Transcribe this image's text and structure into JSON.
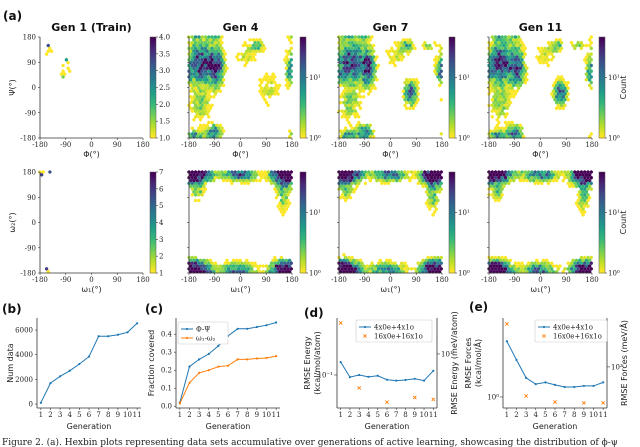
{
  "figure_label_a": "(a)",
  "caption": "Figure 2. (a). Hexbin plots representing data sets accumulative over generations of active learning, showcasing the distribution of ϕ-ψ",
  "chart_data": [
    {
      "type": "heatmap",
      "panel": "a",
      "title": "Gen 1 (Train)",
      "xlabel": "Φ(°)",
      "ylabel": "Ψ(°)",
      "xticks": [
        "-180",
        "-90",
        "0",
        "90",
        "180"
      ],
      "yticks": [
        "180",
        "90",
        "0",
        "-90",
        "-180"
      ],
      "colorbar": {
        "scale": "linear",
        "range": [
          1,
          4
        ],
        "ticks": [
          "1.0",
          "1.5",
          "2.0",
          "2.5",
          "3.0",
          "3.5",
          "4.0"
        ],
        "label": ""
      }
    },
    {
      "type": "heatmap",
      "panel": "a",
      "title": "Gen 4",
      "xlabel": "Φ(°)",
      "xticks": [
        "-180",
        "-90",
        "0",
        "90",
        "180"
      ],
      "colorbar": {
        "scale": "log",
        "ticks": [
          "10⁰",
          "10¹"
        ],
        "label": ""
      }
    },
    {
      "type": "heatmap",
      "panel": "a",
      "title": "Gen 7",
      "xlabel": "Φ(°)",
      "xticks": [
        "-180",
        "-90",
        "0",
        "90",
        "180"
      ],
      "colorbar": {
        "scale": "log",
        "ticks": [
          "10⁰",
          "10¹"
        ],
        "label": ""
      }
    },
    {
      "type": "heatmap",
      "panel": "a",
      "title": "Gen 11",
      "xlabel": "Φ(°)",
      "xticks": [
        "-180",
        "-90",
        "0",
        "90",
        "180"
      ],
      "colorbar": {
        "scale": "log",
        "ticks": [
          "10⁰",
          "10¹"
        ],
        "label": "Count"
      }
    },
    {
      "type": "heatmap",
      "panel": "a",
      "title": "",
      "xlabel": "ω₁(°)",
      "ylabel": "ω₂(°)",
      "xticks": [
        "-180",
        "-90",
        "0",
        "90",
        "180"
      ],
      "yticks": [
        "180",
        "90",
        "0",
        "-90",
        "-180"
      ],
      "colorbar": {
        "scale": "linear",
        "range": [
          1,
          7
        ],
        "ticks": [
          "1",
          "2",
          "3",
          "4",
          "5",
          "6",
          "7"
        ],
        "label": ""
      }
    },
    {
      "type": "heatmap",
      "panel": "a",
      "title": "",
      "xlabel": "ω₁(°)",
      "xticks": [
        "-180",
        "-90",
        "0",
        "90",
        "180"
      ],
      "colorbar": {
        "scale": "log",
        "ticks": [
          "10⁰",
          "10¹"
        ],
        "label": ""
      }
    },
    {
      "type": "heatmap",
      "panel": "a",
      "title": "",
      "xlabel": "ω₁(°)",
      "xticks": [
        "-180",
        "-90",
        "0",
        "90",
        "180"
      ],
      "colorbar": {
        "scale": "log",
        "ticks": [
          "10⁰",
          "10¹"
        ],
        "label": ""
      }
    },
    {
      "type": "heatmap",
      "panel": "a",
      "title": "",
      "xlabel": "ω₁(°)",
      "xticks": [
        "-180",
        "-90",
        "0",
        "90",
        "180"
      ],
      "colorbar": {
        "scale": "log",
        "ticks": [
          "10⁰",
          "10¹"
        ],
        "label": "Count"
      }
    },
    {
      "type": "line",
      "panel": "b",
      "label": "(b)",
      "xlabel": "Generation",
      "ylabel": "Num data",
      "categories": [
        1,
        2,
        3,
        4,
        5,
        6,
        7,
        8,
        9,
        10,
        11
      ],
      "yticks": [
        0,
        2000,
        4000,
        6000
      ],
      "ylim": [
        -320,
        6980
      ],
      "series": [
        {
          "values": [
            100,
            1700,
            2250,
            2700,
            3250,
            3850,
            5500,
            5500,
            5620,
            5820,
            6550
          ],
          "color": "#1f77b4"
        }
      ]
    },
    {
      "type": "line",
      "panel": "c",
      "label": "(c)",
      "xlabel": "Generation",
      "ylabel": "Fraction covered",
      "categories": [
        1,
        2,
        3,
        4,
        5,
        6,
        7,
        8,
        9,
        10,
        11
      ],
      "yticks": [
        "0.0",
        "0.1",
        "0.2",
        "0.3",
        "0.4"
      ],
      "ylim": [
        -0.01,
        0.49
      ],
      "legend": "top-left",
      "series": [
        {
          "name": "Φ-Ψ",
          "values": [
            0.02,
            0.22,
            0.26,
            0.29,
            0.335,
            0.39,
            0.43,
            0.43,
            0.44,
            0.45,
            0.465
          ],
          "color": "#1f77b4"
        },
        {
          "name": "ω₁-ω₂",
          "values": [
            0.015,
            0.13,
            0.185,
            0.2,
            0.22,
            0.225,
            0.26,
            0.26,
            0.265,
            0.268,
            0.278
          ],
          "color": "#ff7f0e"
        }
      ]
    },
    {
      "type": "line",
      "panel": "d",
      "label": "(d)",
      "xlabel": "Generation",
      "ylabel": "RMSE Energy\n(kcal/mol/atom)",
      "ylabel_right": "RMSE Energy (meV/atom)",
      "yscale": "log",
      "ylim": [
        0.027,
        0.96
      ],
      "ytick_left": "10⁻¹",
      "ytick_right": "10¹",
      "legend": "top-right",
      "categories": [
        1,
        2,
        3,
        4,
        5,
        6,
        7,
        8,
        9,
        10,
        11
      ],
      "series": [
        {
          "name": "4x0e+4x1o",
          "x": [
            1,
            2,
            3,
            4,
            5,
            6,
            7,
            8,
            9,
            10,
            11
          ],
          "values": [
            0.167,
            0.092,
            0.1,
            0.093,
            0.097,
            0.083,
            0.08,
            0.082,
            0.086,
            0.08,
            0.118
          ],
          "color": "#1f77b4",
          "style": "line"
        },
        {
          "name": "16x0e+16x1o",
          "x": [
            1,
            3,
            6,
            9,
            11
          ],
          "values": [
            0.79,
            0.06,
            0.034,
            0.041,
            0.038
          ],
          "color": "#ff7f0e",
          "style": "x"
        }
      ]
    },
    {
      "type": "line",
      "panel": "e",
      "label": "(e)",
      "xlabel": "Generation",
      "ylabel": "RMSE Forces\n(kcal/mol/Å)",
      "ylabel_right": "RMSE Forces (meV/Å)",
      "yscale": "log",
      "ylim": [
        0.737,
        8.95
      ],
      "ytick_left": "10⁰",
      "ytick_right": "10²",
      "legend": "top-right",
      "categories": [
        1,
        2,
        3,
        4,
        5,
        6,
        7,
        8,
        9,
        10,
        11
      ],
      "series": [
        {
          "name": "4x0e+4x1o",
          "x": [
            1,
            2,
            3,
            4,
            5,
            6,
            7,
            8,
            9,
            10,
            11
          ],
          "values": [
            4.7,
            2.8,
            1.7,
            1.43,
            1.5,
            1.4,
            1.32,
            1.32,
            1.36,
            1.36,
            1.5
          ],
          "color": "#1f77b4",
          "style": "line"
        },
        {
          "name": "16x0e+16x1o",
          "x": [
            1,
            3,
            6,
            9,
            11
          ],
          "values": [
            7.6,
            1.03,
            0.87,
            0.85,
            0.85
          ],
          "color": "#ff7f0e",
          "style": "x"
        }
      ]
    }
  ]
}
